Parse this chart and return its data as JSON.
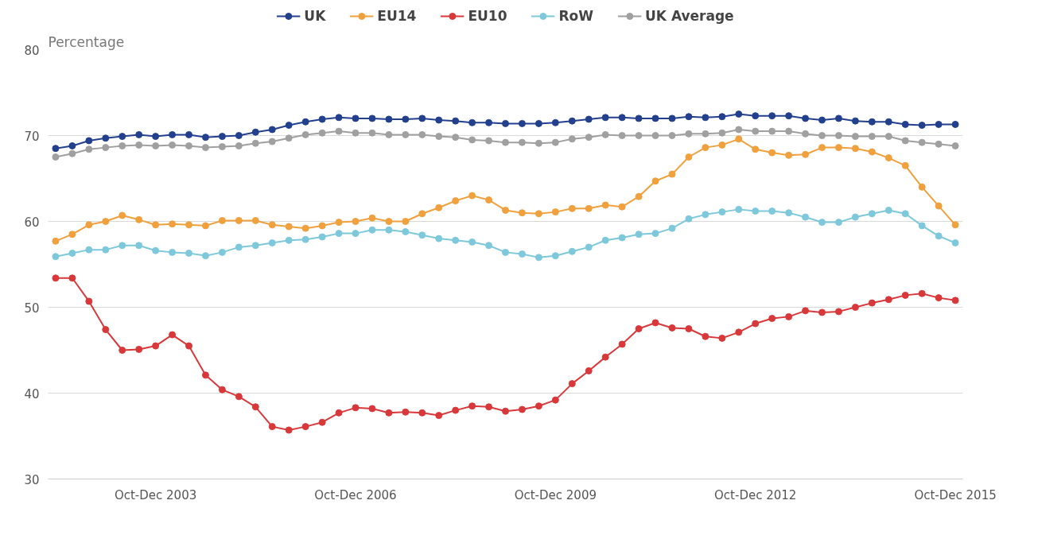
{
  "chart_data": {
    "type": "line",
    "ylabel": "Percentage",
    "categories": [
      null,
      null,
      null,
      null,
      null,
      null,
      "Oct-Dec 2003",
      null,
      null,
      null,
      null,
      null,
      null,
      null,
      null,
      null,
      null,
      null,
      "Oct-Dec 2006",
      null,
      null,
      null,
      null,
      null,
      null,
      null,
      null,
      null,
      null,
      null,
      "Oct-Dec 2009",
      null,
      null,
      null,
      null,
      null,
      null,
      null,
      null,
      null,
      null,
      null,
      "Oct-Dec 2012",
      null,
      null,
      null,
      null,
      null,
      null,
      null,
      null,
      null,
      null,
      null,
      "Oct-Dec 2015"
    ],
    "series": [
      {
        "name": "UK",
        "color": "#23408e",
        "values": [
          68.5,
          68.8,
          69.4,
          69.7,
          69.9,
          70.1,
          69.9,
          70.1,
          70.1,
          69.8,
          69.9,
          70.0,
          70.4,
          70.7,
          71.2,
          71.6,
          71.9,
          72.1,
          72.0,
          72.0,
          71.9,
          71.9,
          72.0,
          71.8,
          71.7,
          71.5,
          71.5,
          71.4,
          71.4,
          71.4,
          71.5,
          71.7,
          71.9,
          72.1,
          72.1,
          72.0,
          72.0,
          72.0,
          72.2,
          72.1,
          72.2,
          72.5,
          72.3,
          72.3,
          72.3,
          72.0,
          71.8,
          72.0,
          71.7,
          71.6,
          71.6,
          71.3,
          71.2,
          71.3,
          71.3
        ]
      },
      {
        "name": "EU14",
        "color": "#f0a03c",
        "values": [
          57.7,
          58.5,
          59.6,
          60.0,
          60.7,
          60.2,
          59.6,
          59.7,
          59.6,
          59.5,
          60.1,
          60.1,
          60.1,
          59.6,
          59.4,
          59.2,
          59.5,
          59.9,
          60.0,
          60.4,
          60.0,
          60.0,
          60.9,
          61.6,
          62.4,
          63.0,
          62.5,
          61.3,
          61.0,
          60.9,
          61.1,
          61.5,
          61.5,
          61.9,
          61.7,
          62.9,
          64.7,
          65.5,
          67.5,
          68.6,
          68.9,
          69.6,
          68.4,
          68.0,
          67.7,
          67.8,
          68.6,
          68.6,
          68.5,
          68.1,
          67.4,
          66.5,
          64.0,
          61.8,
          59.6
        ]
      },
      {
        "name": "EU10",
        "color": "#d9383a",
        "values": [
          53.4,
          53.4,
          50.7,
          47.4,
          45.0,
          45.1,
          45.5,
          46.8,
          45.5,
          42.1,
          40.4,
          39.6,
          38.4,
          36.1,
          35.7,
          36.1,
          36.6,
          37.7,
          38.3,
          38.2,
          37.7,
          37.8,
          37.7,
          37.4,
          38.0,
          38.5,
          38.4,
          37.9,
          38.1,
          38.5,
          39.2,
          41.1,
          42.6,
          44.2,
          45.7,
          47.5,
          48.2,
          47.6,
          47.5,
          46.6,
          46.4,
          47.1,
          48.1,
          48.7,
          48.9,
          49.6,
          49.4,
          49.5,
          50.0,
          50.5,
          50.9,
          51.4,
          51.6,
          51.1,
          50.8
        ]
      },
      {
        "name": "RoW",
        "color": "#7ec8dc",
        "values": [
          55.9,
          56.3,
          56.7,
          56.7,
          57.2,
          57.2,
          56.6,
          56.4,
          56.3,
          56.0,
          56.4,
          57.0,
          57.2,
          57.5,
          57.8,
          57.9,
          58.2,
          58.6,
          58.6,
          59.0,
          59.0,
          58.8,
          58.4,
          58.0,
          57.8,
          57.6,
          57.2,
          56.4,
          56.2,
          55.8,
          56.0,
          56.5,
          57.0,
          57.8,
          58.1,
          58.5,
          58.6,
          59.2,
          60.3,
          60.8,
          61.1,
          61.4,
          61.2,
          61.2,
          61.0,
          60.5,
          59.9,
          59.9,
          60.5,
          60.9,
          61.3,
          60.9,
          59.5,
          58.3,
          57.5
        ]
      },
      {
        "name": "UK Average",
        "color": "#a0a0a0",
        "values": [
          67.5,
          67.9,
          68.4,
          68.6,
          68.8,
          68.9,
          68.8,
          68.9,
          68.8,
          68.6,
          68.7,
          68.8,
          69.1,
          69.3,
          69.7,
          70.1,
          70.3,
          70.5,
          70.3,
          70.3,
          70.1,
          70.1,
          70.1,
          69.9,
          69.8,
          69.5,
          69.4,
          69.2,
          69.2,
          69.1,
          69.2,
          69.6,
          69.8,
          70.1,
          70.0,
          70.0,
          70.0,
          70.0,
          70.2,
          70.2,
          70.3,
          70.7,
          70.5,
          70.5,
          70.5,
          70.2,
          70.0,
          70.0,
          69.9,
          69.9,
          69.9,
          69.4,
          69.2,
          69.0,
          68.8
        ]
      }
    ],
    "ylim": [
      30,
      80
    ],
    "yticks": [
      30,
      40,
      50,
      60,
      70,
      80
    ],
    "grid": "y",
    "legend": "top",
    "marker": "circle",
    "line_style": "solid"
  }
}
